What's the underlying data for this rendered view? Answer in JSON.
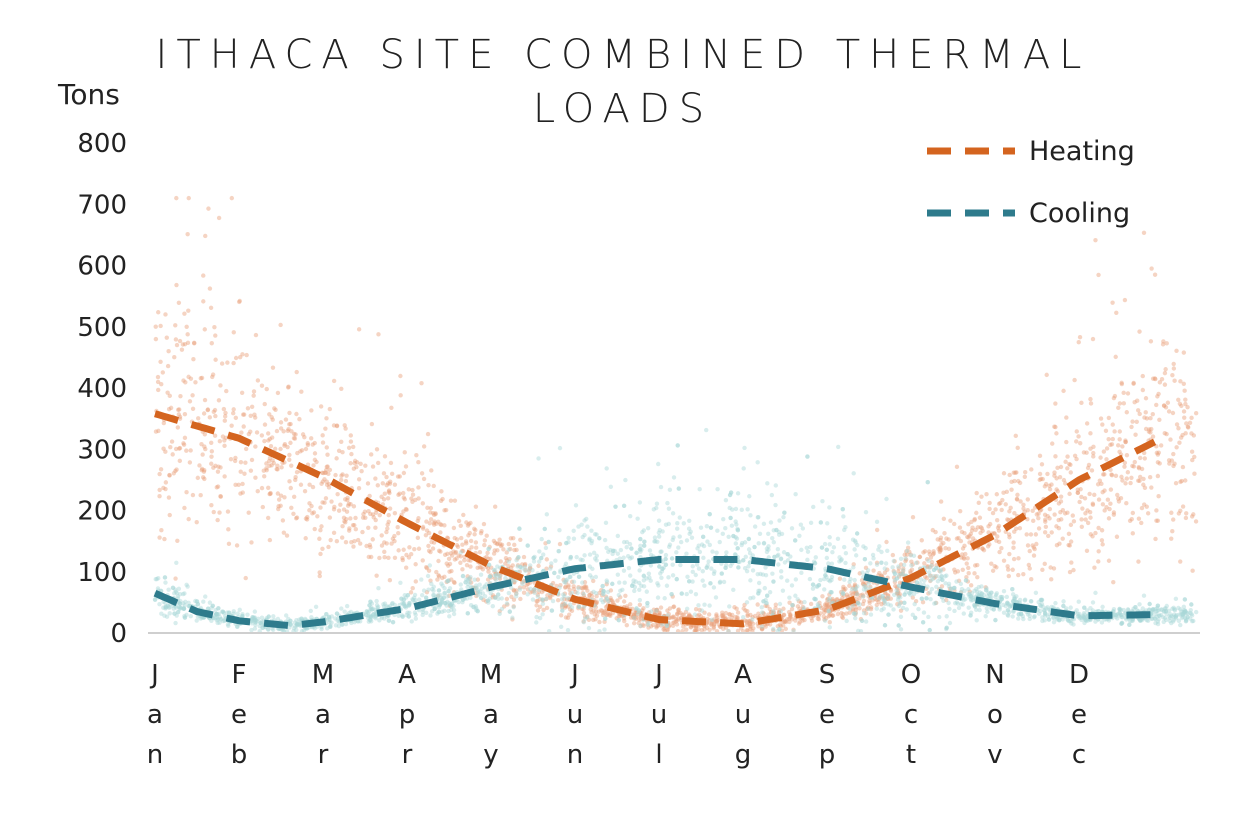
{
  "chart_data": {
    "type": "line",
    "title": "ITHACA SITE COMBINED THERMAL LOADS",
    "title_lines": [
      "ITHACA SITE COMBINED THERMAL",
      "LOADS"
    ],
    "ylabel": "Tons",
    "xlabel": "",
    "ylim": [
      0,
      800
    ],
    "yticks": [
      0,
      100,
      200,
      300,
      400,
      500,
      600,
      700,
      800
    ],
    "categories": [
      "Jan",
      "Feb",
      "Mar",
      "Apr",
      "May",
      "Jun",
      "Jul",
      "Aug",
      "Sep",
      "Oct",
      "Nov",
      "Dec"
    ],
    "legend_position": "top-right",
    "grid": false,
    "series": [
      {
        "name": "Heating",
        "style": "dashed trend with scattered hourly points",
        "color": "#d4641f",
        "point_color": "#e8a07a",
        "trend": [
          {
            "x": 0.0,
            "y": 358
          },
          {
            "x": 1.0,
            "y": 318
          },
          {
            "x": 2.0,
            "y": 255
          },
          {
            "x": 3.0,
            "y": 180
          },
          {
            "x": 4.0,
            "y": 110
          },
          {
            "x": 5.0,
            "y": 55
          },
          {
            "x": 6.0,
            "y": 22
          },
          {
            "x": 7.0,
            "y": 15
          },
          {
            "x": 8.0,
            "y": 38
          },
          {
            "x": 9.0,
            "y": 90
          },
          {
            "x": 10.0,
            "y": 160
          },
          {
            "x": 11.0,
            "y": 250
          },
          {
            "x": 11.9,
            "y": 312
          }
        ]
      },
      {
        "name": "Cooling",
        "style": "dashed trend with scattered hourly points",
        "color": "#2e7b8c",
        "point_color": "#a8d6d6",
        "trend": [
          {
            "x": 0.0,
            "y": 65
          },
          {
            "x": 0.5,
            "y": 35
          },
          {
            "x": 1.0,
            "y": 20
          },
          {
            "x": 1.6,
            "y": 12
          },
          {
            "x": 2.0,
            "y": 18
          },
          {
            "x": 3.0,
            "y": 40
          },
          {
            "x": 4.0,
            "y": 75
          },
          {
            "x": 5.0,
            "y": 105
          },
          {
            "x": 6.0,
            "y": 120
          },
          {
            "x": 7.0,
            "y": 120
          },
          {
            "x": 8.0,
            "y": 105
          },
          {
            "x": 9.0,
            "y": 75
          },
          {
            "x": 10.0,
            "y": 48
          },
          {
            "x": 11.0,
            "y": 28
          },
          {
            "x": 11.9,
            "y": 30
          }
        ]
      }
    ]
  }
}
